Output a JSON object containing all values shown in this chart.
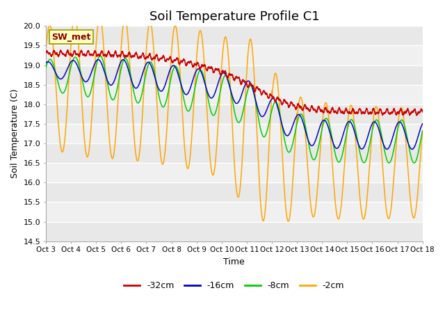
{
  "title": "Soil Temperature Profile C1",
  "xlabel": "Time",
  "ylabel": "Soil Temperature (C)",
  "ylim": [
    14.5,
    20.0
  ],
  "yticks": [
    14.5,
    15.0,
    15.5,
    16.0,
    16.5,
    17.0,
    17.5,
    18.0,
    18.5,
    19.0,
    19.5,
    20.0
  ],
  "xtick_labels": [
    "Oct 3",
    "Oct 4",
    "Oct 5",
    "Oct 6",
    "Oct 7",
    "Oct 8",
    "Oct 9",
    "Oct 10",
    "Oct 11",
    "Oct 12",
    "Oct 13",
    "Oct 14",
    "Oct 15",
    "Oct 16",
    "Oct 17",
    "Oct 18"
  ],
  "annotation_text": "SW_met",
  "annotation_color": "#8B0000",
  "annotation_bg": "#FFFFC0",
  "legend_entries": [
    "-32cm",
    "-16cm",
    "-8cm",
    "-2cm"
  ],
  "line_colors": [
    "#CC0000",
    "#0000CC",
    "#00CC00",
    "#FFA500"
  ],
  "title_fontsize": 13,
  "band_colors": [
    "#E8E8E8",
    "#F0F0F0"
  ]
}
